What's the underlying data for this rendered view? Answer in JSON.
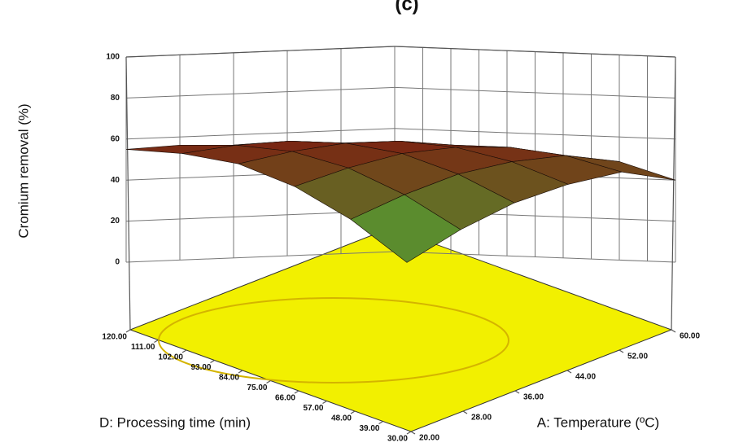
{
  "chart_data": {
    "type": "surface",
    "title": "(c)",
    "zlabel": "Cromium removal (%)",
    "xlabel": "A: Temperature (ºC)",
    "ylabel": "D: Processing time (min)",
    "x": [
      20,
      28,
      36,
      44,
      52,
      60
    ],
    "y": [
      30,
      48,
      66,
      84,
      102,
      120
    ],
    "z": [
      [
        5,
        20,
        32,
        40,
        45,
        40
      ],
      [
        25,
        36,
        45,
        50,
        52,
        48
      ],
      [
        40,
        48,
        54,
        56,
        55,
        50
      ],
      [
        50,
        55,
        58,
        58,
        55,
        48
      ],
      [
        54,
        57,
        58,
        56,
        52,
        45
      ],
      [
        55,
        56,
        55,
        52,
        47,
        40
      ]
    ],
    "xlim": [
      20,
      60
    ],
    "ylim": [
      30,
      120
    ],
    "zlim": [
      0,
      100
    ],
    "xticks": [
      {
        "value": 20,
        "label": "20.00"
      },
      {
        "value": 28,
        "label": "28.00"
      },
      {
        "value": 36,
        "label": "36.00"
      },
      {
        "value": 44,
        "label": "44.00"
      },
      {
        "value": 52,
        "label": "52.00"
      },
      {
        "value": 60,
        "label": "60.00"
      }
    ],
    "yticks": [
      {
        "value": 120,
        "label": "120.00"
      },
      {
        "value": 111,
        "label": "111.00"
      },
      {
        "value": 102,
        "label": "102.00"
      },
      {
        "value": 93,
        "label": "93.00"
      },
      {
        "value": 84,
        "label": "84.00"
      },
      {
        "value": 75,
        "label": "75.00"
      },
      {
        "value": 66,
        "label": "66.00"
      },
      {
        "value": 57,
        "label": "57.00"
      },
      {
        "value": 48,
        "label": "48.00"
      },
      {
        "value": 39,
        "label": "39.00"
      },
      {
        "value": 30,
        "label": "30.00"
      }
    ],
    "zticks": [
      0,
      20,
      40,
      60,
      80,
      100
    ],
    "colors": [
      "#4dbb3a",
      "#7a2412"
    ],
    "floor_color": "#f2f000",
    "grid": true
  }
}
